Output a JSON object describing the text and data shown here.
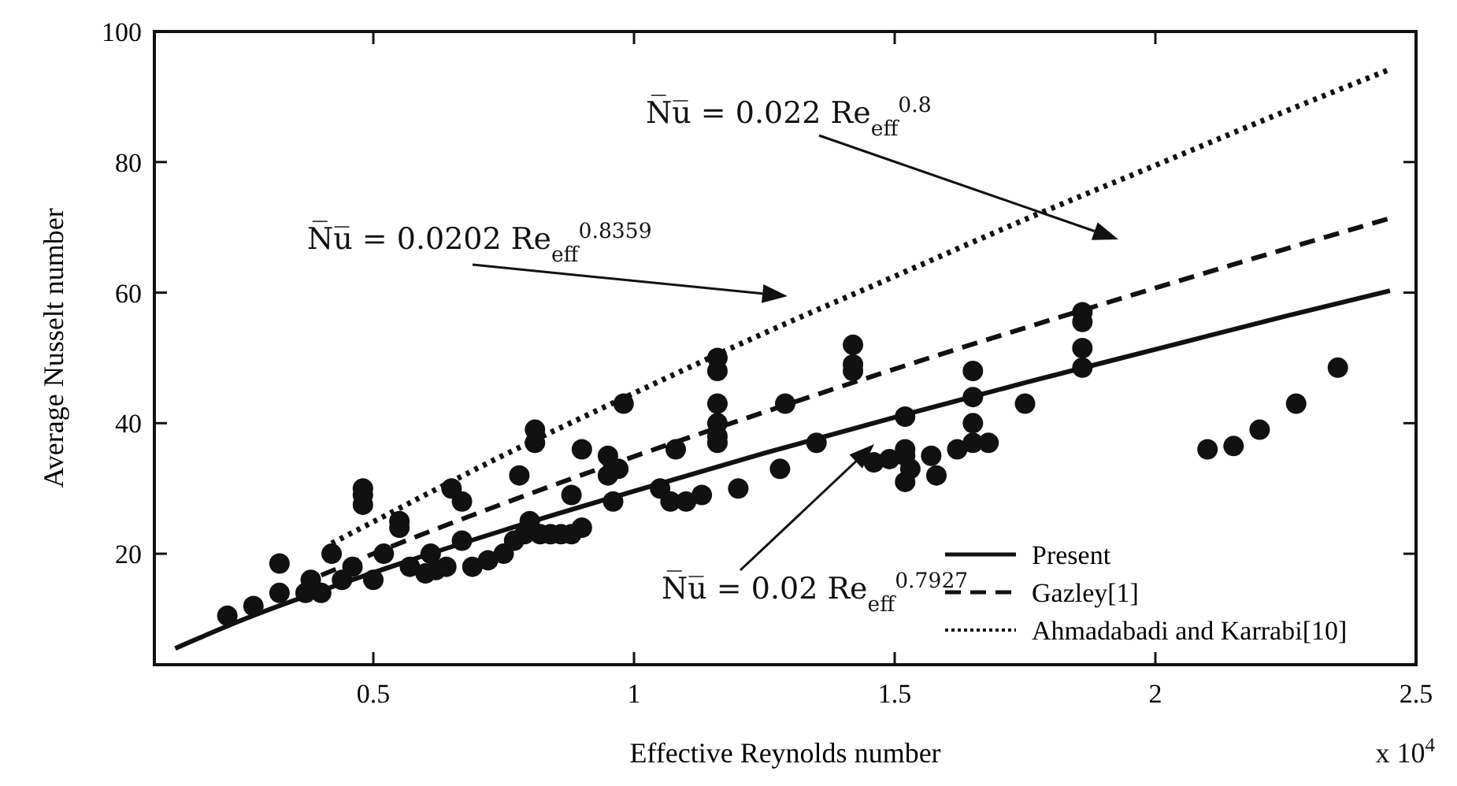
{
  "chart_data": {
    "type": "scatter",
    "xlabel": "Effective Reynolds number",
    "ylabel": "Average Nusselt number",
    "xlim": [
      0.08,
      2.5
    ],
    "ylim": [
      3,
      100
    ],
    "xticks": [
      0.5,
      1,
      1.5,
      2,
      2.5
    ],
    "yticks": [
      20,
      40,
      60,
      80,
      100
    ],
    "grid": false,
    "legend": "bottom right",
    "annotations": [
      "x 10$^{4}$",
      "N̅u̅ = 0.022 Re$_{eff}$$^{0.8}$",
      "N̅u̅ = 0.0202 Re$_{eff}$$^{0.8359}$",
      "N̅u̅ = 0.02 Re$_{eff}$$^{0.7927}$"
    ],
    "series": [
      {
        "color": "#111111",
        "marker": "circle",
        "x": [
          0.22,
          0.27,
          0.32,
          0.32,
          0.37,
          0.38,
          0.4,
          0.42,
          0.44,
          0.46,
          0.48,
          0.48,
          0.48,
          0.5,
          0.52,
          0.55,
          0.55,
          0.57,
          0.6,
          0.61,
          0.62,
          0.64,
          0.65,
          0.67,
          0.67,
          0.69,
          0.72,
          0.75,
          0.77,
          0.78,
          0.79,
          0.8,
          0.81,
          0.81,
          0.82,
          0.84,
          0.86,
          0.88,
          0.88,
          0.9,
          0.9,
          0.95,
          0.95,
          0.96,
          0.97,
          0.98,
          1.05,
          1.07,
          1.08,
          1.1,
          1.13,
          1.16,
          1.16,
          1.16,
          1.16,
          1.16,
          1.16,
          1.2,
          1.28,
          1.29,
          1.35,
          1.42,
          1.42,
          1.42,
          1.46,
          1.49,
          1.52,
          1.52,
          1.52,
          1.53,
          1.52,
          1.57,
          1.58,
          1.62,
          1.65,
          1.65,
          1.65,
          1.65,
          1.68,
          1.75,
          1.86,
          1.86,
          1.86,
          1.86,
          2.1,
          2.15,
          2.2,
          2.27,
          2.35
        ],
        "values": [
          10.5,
          12,
          14,
          18.5,
          14,
          16,
          14,
          20,
          16,
          18,
          30,
          29,
          27.5,
          16,
          20,
          25,
          24,
          18,
          17,
          20,
          17.5,
          18,
          30,
          28,
          22,
          18,
          19,
          20,
          22,
          32,
          23,
          25,
          39,
          37,
          23,
          23,
          23,
          23,
          29,
          24,
          36,
          35,
          32,
          28,
          33,
          43,
          30,
          28,
          36,
          28,
          29,
          50,
          48,
          43,
          40,
          38,
          37,
          30,
          33,
          43,
          37,
          52,
          49,
          48,
          34,
          34.5,
          41,
          36,
          35,
          33,
          31,
          35,
          32,
          36,
          48,
          44,
          40,
          37,
          37,
          43,
          57,
          55.5,
          51.5,
          48.5,
          36,
          36.5,
          39,
          43,
          48.5
        ]
      },
      {
        "type": "line",
        "name": "Present",
        "color": "#111111",
        "line_style": "solid",
        "marker": "none",
        "x": [
          0.12,
          0.25,
          0.5,
          0.75,
          1,
          1.25,
          1.5,
          1.75,
          2,
          2.25,
          2.45
        ],
        "values": [
          5.5,
          9.9,
          17.1,
          23.6,
          29.6,
          35.4,
          40.9,
          46.2,
          51.3,
          56.4,
          60.3
        ]
      },
      {
        "type": "line",
        "name": "Gazley[1]",
        "color": "#111111",
        "line_style": "dashed",
        "marker": "none",
        "x": [
          0.4,
          0.5,
          0.75,
          1,
          1.25,
          1.5,
          1.75,
          2,
          2.25,
          2.45
        ],
        "values": [
          16.7,
          20,
          27.7,
          34.9,
          41.7,
          48.3,
          54.6,
          60.7,
          66.7,
          71.4
        ]
      },
      {
        "type": "line",
        "name": "Ahmadabadi and Karrabi[10]",
        "color": "#111111",
        "line_style": "dotted",
        "marker": "none",
        "x": [
          0.42,
          0.5,
          0.75,
          1,
          1.25,
          1.5,
          1.75,
          2,
          2.25,
          2.45
        ],
        "values": [
          21.6,
          24.9,
          35.1,
          44.6,
          53.8,
          62.5,
          71.2,
          79.5,
          87.8,
          94.2
        ]
      }
    ]
  }
}
